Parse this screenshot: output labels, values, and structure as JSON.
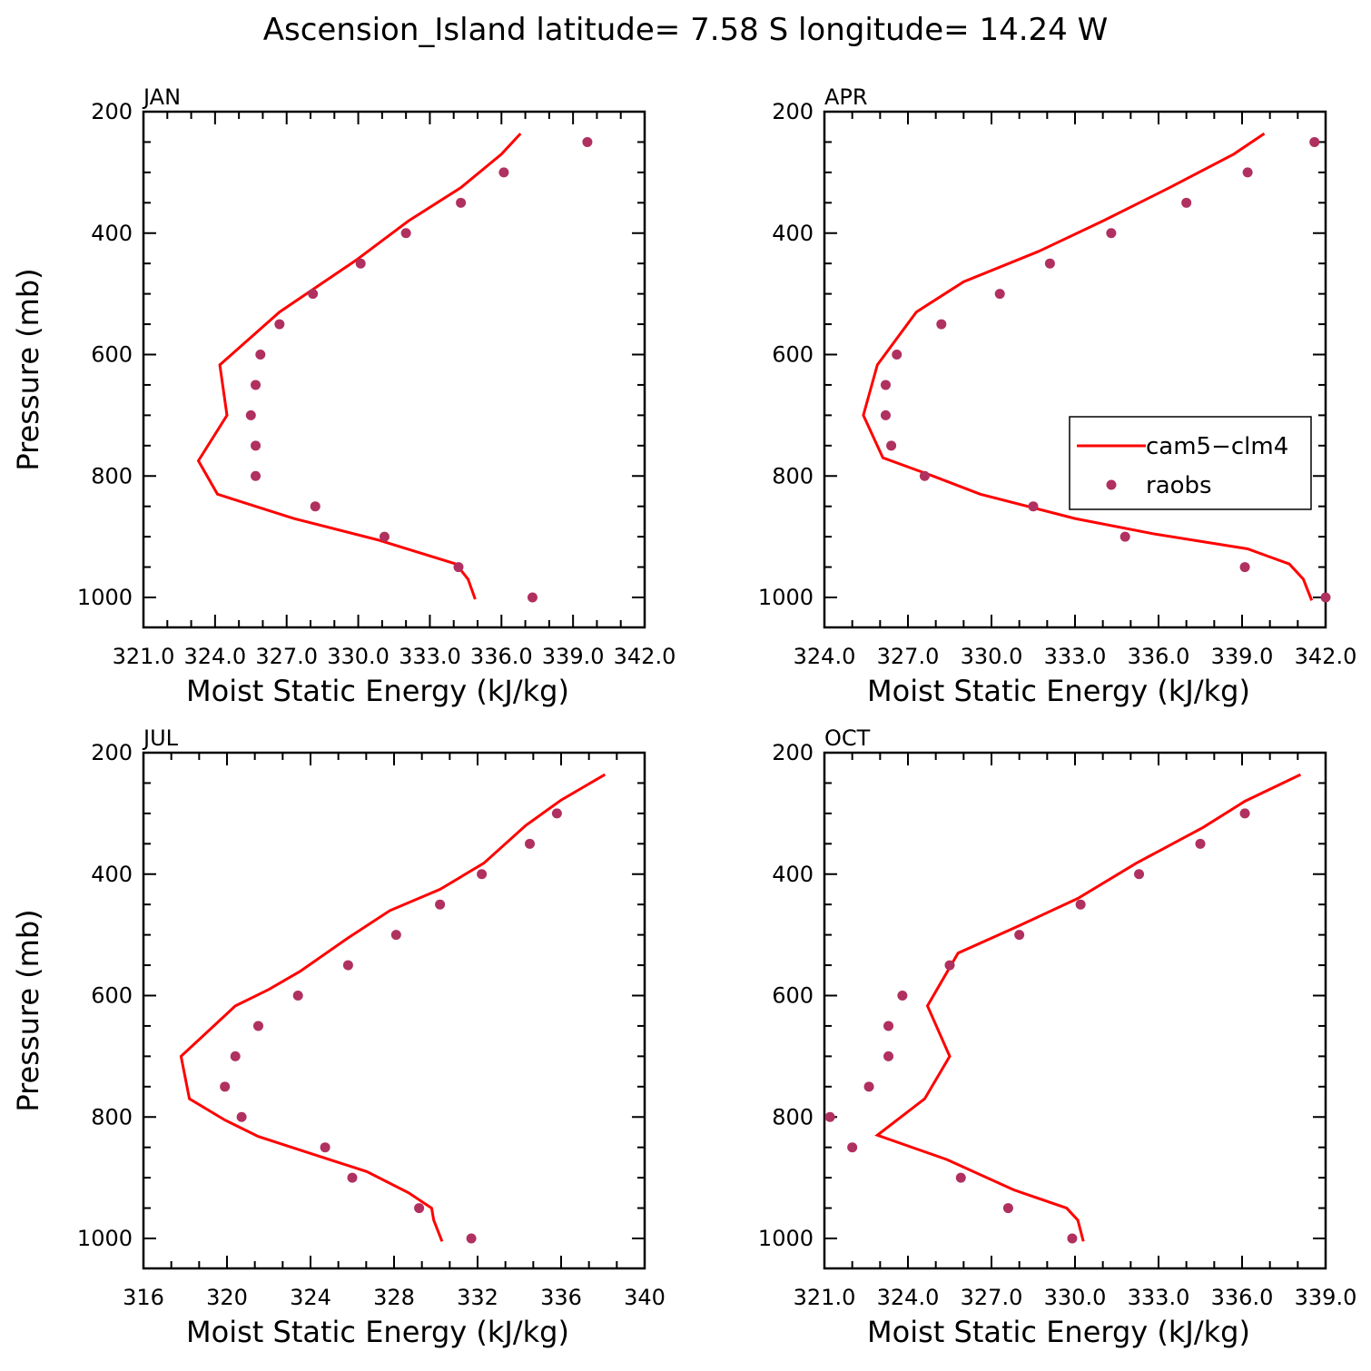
{
  "figure": {
    "title": "Ascension_Island  latitude= 7.58 S longitude= 14.24 W"
  },
  "legend": {
    "model_label": "cam5−clm4",
    "obs_label": "raobs"
  },
  "colors": {
    "model": "#ff0000",
    "obs": "#b03060"
  },
  "chart_data": [
    {
      "type": "line",
      "panel": "JAN",
      "title": "JAN",
      "xlabel": "Moist Static Energy (kJ/kg)",
      "ylabel": "Pressure (mb)",
      "xlim": [
        321,
        342
      ],
      "ylim": [
        200,
        1000
      ],
      "y_inverted": true,
      "xticks": [
        321,
        324,
        327,
        330,
        333,
        336,
        339,
        342
      ],
      "xtick_labels": [
        "321.0",
        "324.0",
        "327.0",
        "330.0",
        "333.0",
        "336.0",
        "339.0",
        "342.0"
      ],
      "yticks": [
        200,
        400,
        600,
        800,
        1000
      ],
      "legend": false,
      "series": [
        {
          "name": "cam5−clm4",
          "kind": "line",
          "points": [
            [
              336.8,
              236
            ],
            [
              336.0,
              270
            ],
            [
              334.3,
              325
            ],
            [
              332.1,
              380
            ],
            [
              329.9,
              445
            ],
            [
              326.7,
              530
            ],
            [
              324.2,
              617
            ],
            [
              324.5,
              700
            ],
            [
              323.3,
              775
            ],
            [
              324.1,
              830
            ],
            [
              327.3,
              870
            ],
            [
              330.8,
              905
            ],
            [
              334.1,
              945
            ],
            [
              334.6,
              970
            ],
            [
              334.9,
              1003
            ]
          ]
        },
        {
          "name": "raobs",
          "kind": "scatter",
          "points": [
            [
              339.6,
              250
            ],
            [
              336.1,
              300
            ],
            [
              334.3,
              350
            ],
            [
              332.0,
              400
            ],
            [
              330.1,
              450
            ],
            [
              328.1,
              500
            ],
            [
              326.7,
              550
            ],
            [
              325.9,
              600
            ],
            [
              325.7,
              650
            ],
            [
              325.5,
              700
            ],
            [
              325.7,
              750
            ],
            [
              325.7,
              800
            ],
            [
              328.2,
              850
            ],
            [
              331.1,
              900
            ],
            [
              334.2,
              950
            ],
            [
              337.3,
              1000
            ]
          ]
        }
      ]
    },
    {
      "type": "line",
      "panel": "APR",
      "title": "APR",
      "xlabel": "Moist Static Energy (kJ/kg)",
      "ylabel": "",
      "xlim": [
        324,
        342
      ],
      "ylim": [
        200,
        1000
      ],
      "y_inverted": true,
      "xticks": [
        324,
        327,
        330,
        333,
        336,
        339,
        342
      ],
      "xtick_labels": [
        "324.0",
        "327.0",
        "330.0",
        "333.0",
        "336.0",
        "339.0",
        "342.0"
      ],
      "yticks": [
        200,
        400,
        600,
        800,
        1000
      ],
      "legend": true,
      "legend_position": "middle-right",
      "series": [
        {
          "name": "cam5−clm4",
          "kind": "line",
          "points": [
            [
              339.8,
              236
            ],
            [
              338.7,
              270
            ],
            [
              336.4,
              325
            ],
            [
              334.0,
              380
            ],
            [
              331.7,
              430
            ],
            [
              329.0,
              480
            ],
            [
              327.3,
              530
            ],
            [
              325.9,
              617
            ],
            [
              325.4,
              700
            ],
            [
              326.1,
              770
            ],
            [
              327.9,
              800
            ],
            [
              329.6,
              830
            ],
            [
              333.0,
              870
            ],
            [
              335.8,
              895
            ],
            [
              339.2,
              920
            ],
            [
              340.7,
              945
            ],
            [
              341.2,
              970
            ],
            [
              341.5,
              1005
            ]
          ]
        },
        {
          "name": "raobs",
          "kind": "scatter",
          "points": [
            [
              341.6,
              250
            ],
            [
              339.2,
              300
            ],
            [
              337.0,
              350
            ],
            [
              334.3,
              400
            ],
            [
              332.1,
              450
            ],
            [
              330.3,
              500
            ],
            [
              328.2,
              550
            ],
            [
              326.6,
              600
            ],
            [
              326.2,
              650
            ],
            [
              326.2,
              700
            ],
            [
              326.4,
              750
            ],
            [
              327.6,
              800
            ],
            [
              331.5,
              850
            ],
            [
              334.8,
              900
            ],
            [
              339.1,
              950
            ],
            [
              342.0,
              1000
            ]
          ]
        }
      ]
    },
    {
      "type": "line",
      "panel": "JUL",
      "title": "JUL",
      "xlabel": "Moist Static Energy (kJ/kg)",
      "ylabel": "Pressure (mb)",
      "xlim": [
        316,
        340
      ],
      "ylim": [
        200,
        1000
      ],
      "y_inverted": true,
      "xticks": [
        316,
        320,
        324,
        328,
        332,
        336,
        340
      ],
      "xtick_labels": [
        "316",
        "320",
        "324",
        "328",
        "332",
        "336",
        "340"
      ],
      "yticks": [
        200,
        400,
        600,
        800,
        1000
      ],
      "legend": false,
      "series": [
        {
          "name": "cam5−clm4",
          "kind": "line",
          "points": [
            [
              338.1,
              236
            ],
            [
              336.0,
              278
            ],
            [
              334.3,
              320
            ],
            [
              332.3,
              382
            ],
            [
              330.2,
              425
            ],
            [
              327.8,
              460
            ],
            [
              325.8,
              505
            ],
            [
              323.5,
              560
            ],
            [
              322.0,
              590
            ],
            [
              320.4,
              617
            ],
            [
              317.8,
              700
            ],
            [
              318.2,
              770
            ],
            [
              319.9,
              805
            ],
            [
              321.5,
              832
            ],
            [
              324.9,
              870
            ],
            [
              326.7,
              890
            ],
            [
              328.7,
              925
            ],
            [
              329.8,
              950
            ],
            [
              329.9,
              970
            ],
            [
              330.3,
              1005
            ]
          ]
        },
        {
          "name": "raobs",
          "kind": "scatter",
          "points": [
            [
              335.8,
              300
            ],
            [
              334.5,
              350
            ],
            [
              332.2,
              400
            ],
            [
              330.2,
              450
            ],
            [
              328.1,
              500
            ],
            [
              325.8,
              550
            ],
            [
              323.4,
              600
            ],
            [
              321.5,
              650
            ],
            [
              320.4,
              700
            ],
            [
              319.9,
              750
            ],
            [
              320.7,
              800
            ],
            [
              324.7,
              850
            ],
            [
              326.0,
              900
            ],
            [
              329.2,
              950
            ],
            [
              331.7,
              1000
            ]
          ]
        }
      ]
    },
    {
      "type": "line",
      "panel": "OCT",
      "title": "OCT",
      "xlabel": "Moist Static Energy (kJ/kg)",
      "ylabel": "",
      "xlim": [
        321,
        339
      ],
      "ylim": [
        200,
        1000
      ],
      "y_inverted": true,
      "xticks": [
        321,
        324,
        327,
        330,
        333,
        336,
        339
      ],
      "xtick_labels": [
        "321.0",
        "324.0",
        "327.0",
        "330.0",
        "333.0",
        "336.0",
        "339.0"
      ],
      "yticks": [
        200,
        400,
        600,
        800,
        1000
      ],
      "legend": false,
      "series": [
        {
          "name": "cam5−clm4",
          "kind": "line",
          "points": [
            [
              338.1,
              236
            ],
            [
              336.1,
              280
            ],
            [
              334.6,
              323
            ],
            [
              332.2,
              382
            ],
            [
              330.1,
              440
            ],
            [
              327.9,
              487
            ],
            [
              325.8,
              530
            ],
            [
              324.7,
              617
            ],
            [
              325.5,
              700
            ],
            [
              324.6,
              770
            ],
            [
              322.9,
              830
            ],
            [
              325.4,
              870
            ],
            [
              327.8,
              920
            ],
            [
              329.7,
              950
            ],
            [
              330.1,
              970
            ],
            [
              330.3,
              1005
            ]
          ]
        },
        {
          "name": "raobs",
          "kind": "scatter",
          "points": [
            [
              336.1,
              300
            ],
            [
              334.5,
              350
            ],
            [
              332.3,
              400
            ],
            [
              330.2,
              450
            ],
            [
              328.0,
              500
            ],
            [
              325.5,
              550
            ],
            [
              323.8,
              600
            ],
            [
              323.3,
              650
            ],
            [
              323.3,
              700
            ],
            [
              322.6,
              750
            ],
            [
              321.2,
              800
            ],
            [
              322.0,
              850
            ],
            [
              325.9,
              900
            ],
            [
              327.6,
              950
            ],
            [
              329.9,
              1000
            ]
          ]
        }
      ]
    }
  ]
}
